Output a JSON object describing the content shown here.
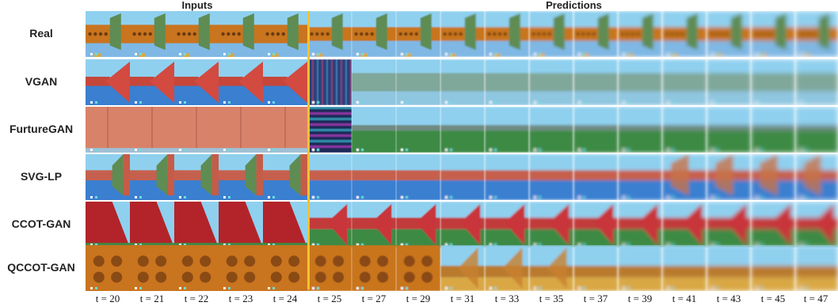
{
  "headers": {
    "inputs": "Inputs",
    "predictions": "Predictions"
  },
  "rows": [
    {
      "label": "Real",
      "kind": "real"
    },
    {
      "label": "VGAN",
      "kind": "vgan"
    },
    {
      "label": "FurtureGAN",
      "kind": "futuregan"
    },
    {
      "label": "SVG-LP",
      "kind": "svglp"
    },
    {
      "label": "CCOT-GAN",
      "kind": "ccot"
    },
    {
      "label": "QCCOT-GAN",
      "kind": "qccot"
    }
  ],
  "time_labels": [
    "t = 20",
    "t = 21",
    "t = 22",
    "t = 23",
    "t = 24",
    "t = 25",
    "t = 27",
    "t = 29",
    "t = 31",
    "t = 33",
    "t = 35",
    "t = 37",
    "t = 39",
    "t = 41",
    "t = 43",
    "t = 45",
    "t = 47"
  ],
  "colors": {
    "sky": "#8fd0ef",
    "sea": "#3b7fd0",
    "wall_orange": "#c9741e",
    "wall_salmon": "#d9826a",
    "wall_red": "#b2242a",
    "pillar_green": "#5e8c52",
    "grass": "#3e8a45",
    "sand": "#d9a844",
    "divider": "#f2c230"
  }
}
